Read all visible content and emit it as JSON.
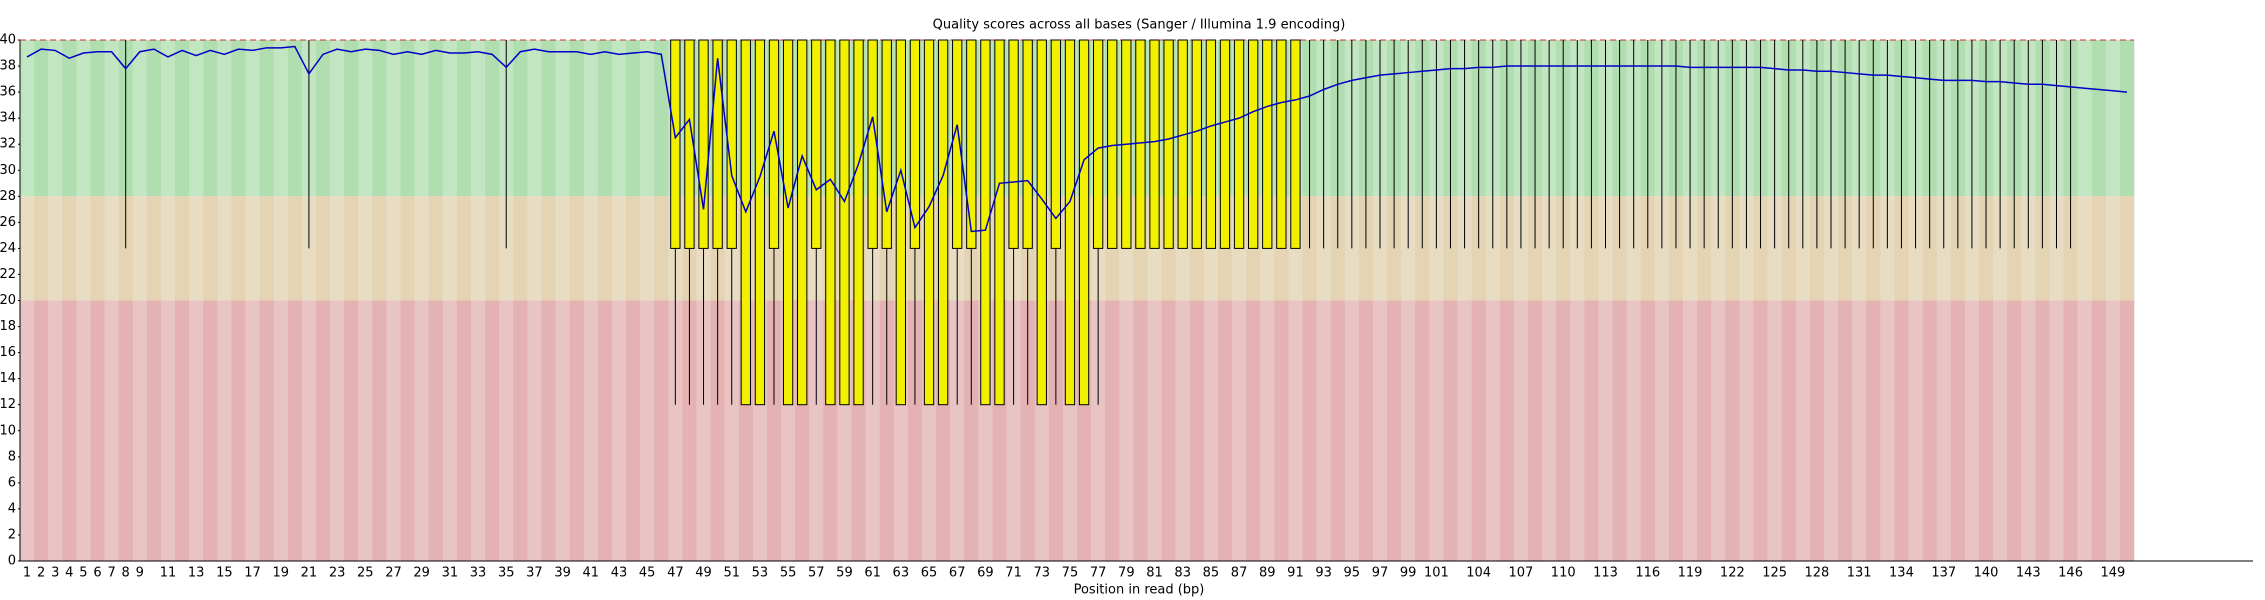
{
  "chart_data": {
    "type": "box",
    "title": "Quality scores across all bases (Sanger / Illumina 1.9 encoding)",
    "x_label": "Position in read (bp)",
    "categories": [
      "1",
      "2",
      "3",
      "4",
      "5",
      "6",
      "7",
      "8",
      "9",
      null,
      "11",
      null,
      "13",
      null,
      "15",
      null,
      "17",
      null,
      "19",
      null,
      "21",
      null,
      "23",
      null,
      "25",
      null,
      "27",
      null,
      "29",
      null,
      "31",
      null,
      "33",
      null,
      "35",
      null,
      "37",
      null,
      "39",
      null,
      "41",
      null,
      "43",
      null,
      "45",
      null,
      "47",
      null,
      "49",
      null,
      "51",
      null,
      "53",
      null,
      "55",
      null,
      "57",
      null,
      "59",
      null,
      "61",
      null,
      "63",
      null,
      "65",
      null,
      "67",
      null,
      "69",
      null,
      "71",
      null,
      "73",
      null,
      "75",
      null,
      "77",
      null,
      "79",
      null,
      "81",
      null,
      "83",
      null,
      "85",
      null,
      "87",
      null,
      "89",
      null,
      "91",
      null,
      "93",
      null,
      "95",
      null,
      "97",
      null,
      "99",
      null,
      "101",
      null,
      null,
      "104",
      null,
      null,
      "107",
      null,
      null,
      "110",
      null,
      null,
      "113",
      null,
      null,
      "116",
      null,
      null,
      "119",
      null,
      null,
      "122",
      null,
      null,
      "125",
      null,
      null,
      "128",
      null,
      null,
      "131",
      null,
      null,
      "134",
      null,
      null,
      "137",
      null,
      null,
      "140",
      null,
      null,
      "143",
      null,
      null,
      "146",
      null,
      null,
      "149",
      null
    ],
    "mean": [
      38.7,
      39.3,
      39.2,
      38.6,
      39.0,
      39.1,
      39.1,
      37.8,
      39.1,
      39.3,
      38.7,
      39.2,
      38.8,
      39.2,
      38.9,
      39.3,
      39.2,
      39.4,
      39.4,
      39.5,
      37.4,
      38.9,
      39.3,
      39.1,
      39.3,
      39.2,
      38.9,
      39.1,
      38.9,
      39.2,
      39.0,
      39.0,
      39.1,
      38.9,
      37.9,
      39.1,
      39.3,
      39.1,
      39.1,
      39.1,
      38.9,
      39.1,
      38.9,
      39.0,
      39.1,
      38.9,
      32.5,
      33.9,
      27.0,
      38.6,
      29.6,
      26.8,
      29.5,
      33.0,
      27.1,
      31.1,
      28.5,
      29.3,
      27.6,
      30.5,
      34.1,
      26.8,
      30.0,
      25.6,
      27.2,
      29.6,
      33.5,
      25.3,
      25.4,
      29.0,
      29.1,
      29.2,
      27.8,
      26.3,
      27.6,
      30.8,
      31.7,
      31.9,
      32.0,
      32.1,
      32.2,
      32.4,
      32.7,
      33.0,
      33.4,
      33.7,
      34.0,
      34.5,
      34.9,
      35.2,
      35.4,
      35.7,
      36.2,
      36.6,
      36.9,
      37.1,
      37.3,
      37.4,
      37.5,
      37.6,
      37.7,
      37.8,
      37.8,
      37.9,
      37.9,
      38.0,
      38.0,
      38.0,
      38.0,
      38.0,
      38.0,
      38.0,
      38.0,
      38.0,
      38.0,
      38.0,
      38.0,
      38.0,
      37.9,
      37.9,
      37.9,
      37.9,
      37.9,
      37.9,
      37.8,
      37.7,
      37.7,
      37.6,
      37.6,
      37.5,
      37.4,
      37.3,
      37.3,
      37.2,
      37.1,
      37.0,
      36.9,
      36.9,
      36.9,
      36.8,
      36.8,
      36.7,
      36.6,
      36.6,
      36.5,
      36.4,
      36.3,
      36.2,
      36.1,
      36.0
    ],
    "lower_quartile": [
      40,
      40,
      40,
      40,
      40,
      40,
      40,
      40,
      40,
      40,
      40,
      40,
      40,
      40,
      40,
      40,
      40,
      40,
      40,
      40,
      40,
      40,
      40,
      40,
      40,
      40,
      40,
      40,
      40,
      40,
      40,
      40,
      40,
      40,
      40,
      40,
      40,
      40,
      40,
      40,
      40,
      40,
      40,
      40,
      40,
      40,
      24,
      24,
      24,
      24,
      24,
      12,
      12,
      24,
      12,
      12,
      24,
      12,
      12,
      12,
      24,
      24,
      12,
      24,
      12,
      12,
      24,
      24,
      12,
      12,
      24,
      24,
      12,
      24,
      12,
      12,
      24,
      24,
      24,
      24,
      24,
      24,
      24,
      24,
      24,
      24,
      24,
      24,
      24,
      24,
      24,
      40,
      40,
      40,
      40,
      40,
      40,
      40,
      40,
      40,
      40,
      40,
      40,
      40,
      40,
      40,
      40,
      40,
      40,
      40,
      40,
      40,
      40,
      40,
      40,
      40,
      40,
      40,
      40,
      40,
      40,
      40,
      40,
      40,
      40,
      40,
      40,
      40,
      40,
      40,
      40,
      40,
      40,
      40,
      40,
      40,
      40,
      40,
      40,
      40,
      40,
      40,
      40,
      40,
      40,
      40
    ],
    "upper_quartile": [
      40,
      40,
      40,
      40,
      40,
      40,
      40,
      40,
      40,
      40,
      40,
      40,
      40,
      40,
      40,
      40,
      40,
      40,
      40,
      40,
      40,
      40,
      40,
      40,
      40,
      40,
      40,
      40,
      40,
      40,
      40,
      40,
      40,
      40,
      40,
      40,
      40,
      40,
      40,
      40,
      40,
      40,
      40,
      40,
      40,
      40,
      40,
      40,
      40,
      40,
      40,
      40,
      40,
      40,
      40,
      40,
      40,
      40,
      40,
      40,
      40,
      40,
      40,
      40,
      40,
      40,
      40,
      40,
      40,
      40,
      40,
      40,
      40,
      40,
      40,
      40,
      40,
      40,
      40,
      40,
      40,
      40,
      40,
      40,
      40,
      40,
      40,
      40,
      40,
      40,
      40,
      40,
      40,
      40,
      40,
      40,
      40,
      40,
      40,
      40,
      40,
      40,
      40,
      40,
      40,
      40,
      40,
      40,
      40,
      40,
      40,
      40,
      40,
      40,
      40,
      40,
      40,
      40,
      40,
      40,
      40,
      40,
      40,
      40,
      40,
      40,
      40,
      40,
      40,
      40,
      40,
      40,
      40,
      40,
      40,
      40,
      40,
      40,
      40,
      40,
      40,
      40,
      40,
      40,
      40,
      40,
      40,
      40,
      40,
      40
    ],
    "percentile_10": [
      40,
      40,
      40,
      40,
      40,
      40,
      40,
      24,
      40,
      40,
      40,
      40,
      40,
      40,
      40,
      40,
      40,
      40,
      40,
      40,
      24,
      40,
      40,
      40,
      40,
      40,
      40,
      40,
      40,
      40,
      40,
      40,
      40,
      40,
      24,
      40,
      40,
      40,
      40,
      40,
      40,
      40,
      40,
      40,
      40,
      40,
      12,
      12,
      12,
      12,
      12,
      12,
      12,
      12,
      12,
      12,
      12,
      12,
      12,
      12,
      12,
      12,
      12,
      12,
      12,
      12,
      12,
      12,
      12,
      12,
      12,
      12,
      12,
      12,
      12,
      12,
      12,
      24,
      24,
      24,
      24,
      24,
      24,
      24,
      24,
      24,
      24,
      24,
      24,
      24,
      24,
      24,
      24,
      24,
      24,
      24,
      24,
      24,
      24,
      24,
      24,
      24,
      24,
      24,
      24,
      24,
      24,
      24,
      24,
      24,
      24,
      24,
      24,
      24,
      24,
      24,
      24,
      24,
      24,
      24,
      24,
      24,
      24,
      24,
      24,
      24,
      24,
      24,
      24,
      24,
      24,
      24,
      24,
      24,
      24,
      24,
      24,
      24,
      24,
      24,
      24,
      24,
      24,
      24,
      24,
      24
    ],
    "mean_color": "#0000c8",
    "box_color": "#f0f000",
    "zones": [
      {
        "ylim": [
          28,
          40
        ],
        "colors": [
          "#c2e6c2",
          "#b0deb0"
        ]
      },
      {
        "ylim": [
          20,
          28
        ],
        "colors": [
          "#e8dcc2",
          "#e4d4b4"
        ]
      },
      {
        "ylim": [
          0,
          20
        ],
        "colors": [
          "#e8c4c4",
          "#e4b2b2"
        ]
      }
    ],
    "ylim": [
      0,
      40
    ],
    "yticks": [
      0,
      2,
      4,
      6,
      8,
      10,
      12,
      14,
      16,
      18,
      20,
      22,
      24,
      26,
      28,
      30,
      32,
      34,
      36,
      38,
      40
    ]
  }
}
